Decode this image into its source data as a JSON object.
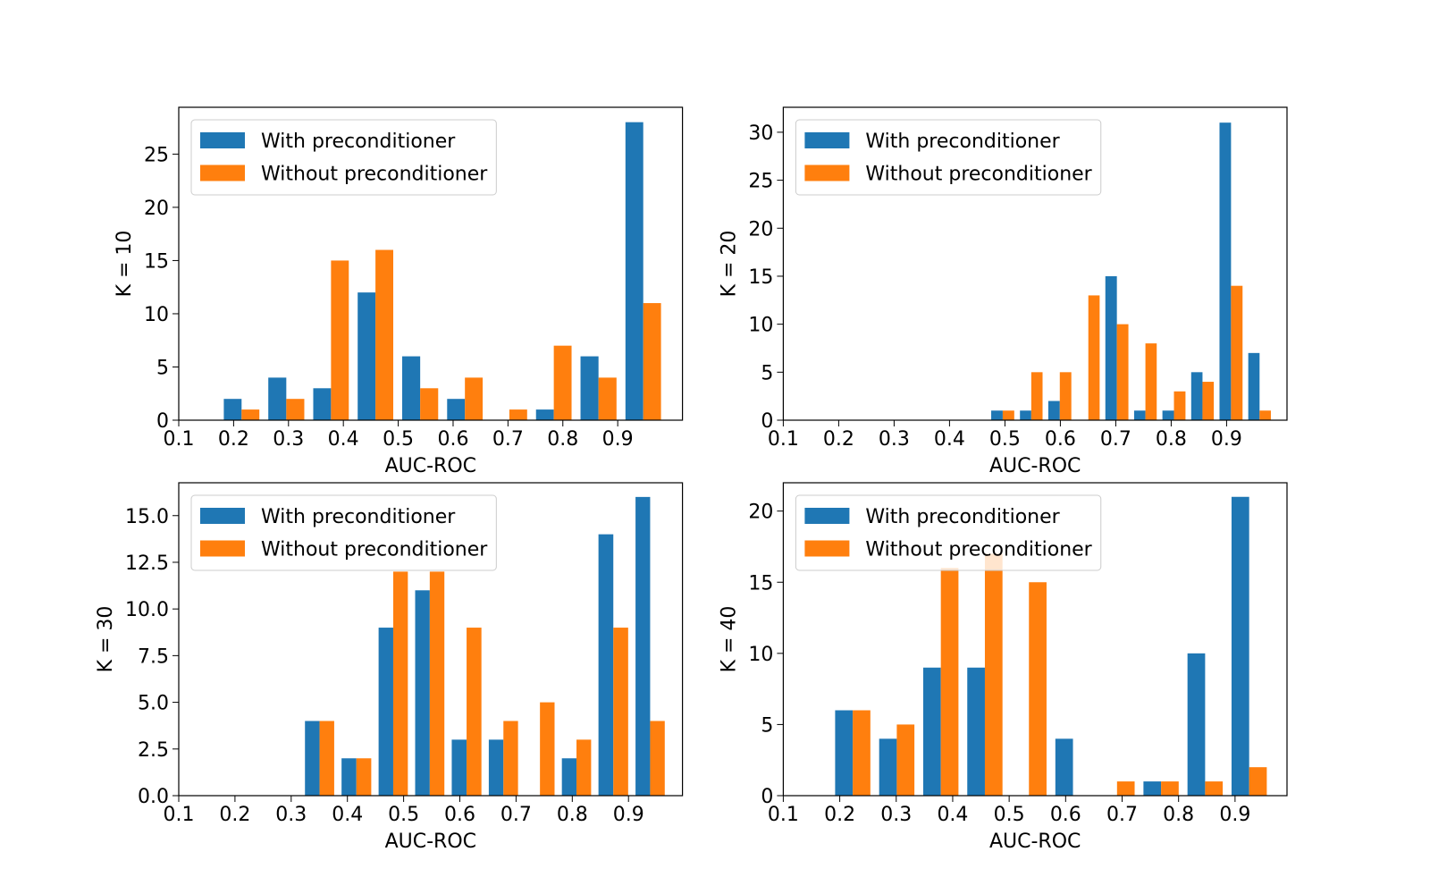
{
  "chart_data": [
    {
      "type": "histogram",
      "xlabel": "AUC-ROC",
      "ylabel": "K = 10",
      "bins": [
        0.174,
        0.255,
        0.337,
        0.418,
        0.499,
        0.581,
        0.662,
        0.743,
        0.824,
        0.906,
        0.987
      ],
      "series": [
        {
          "name": "With preconditioner",
          "color": "#1f77b4",
          "values": [
            2,
            4,
            3,
            12,
            6,
            2,
            0,
            1,
            6,
            28
          ]
        },
        {
          "name": "Without preconditioner",
          "color": "#ff7f0e",
          "values": [
            1,
            2,
            15,
            16,
            3,
            4,
            1,
            7,
            4,
            11
          ]
        }
      ],
      "xlim": [
        0.1,
        1.018
      ],
      "xticks": [
        0.1,
        0.2,
        0.3,
        0.4,
        0.5,
        0.6,
        0.7,
        0.8,
        0.9
      ],
      "ylim": [
        0,
        29.4
      ],
      "yticks": [
        0,
        5,
        10,
        15,
        20,
        25
      ],
      "legend": "upper left"
    },
    {
      "type": "histogram",
      "xlabel": "AUC-ROC",
      "ylabel": "K = 20",
      "bins": [
        0.47,
        0.522,
        0.573,
        0.625,
        0.676,
        0.728,
        0.779,
        0.831,
        0.882,
        0.934,
        0.985
      ],
      "series": [
        {
          "name": "With preconditioner",
          "color": "#1f77b4",
          "values": [
            1,
            1,
            2,
            0,
            15,
            1,
            1,
            5,
            31,
            7
          ]
        },
        {
          "name": "Without preconditioner",
          "color": "#ff7f0e",
          "values": [
            1,
            5,
            5,
            13,
            10,
            8,
            3,
            4,
            14,
            1
          ]
        }
      ],
      "xlim": [
        0.1,
        1.009
      ],
      "xticks": [
        0.1,
        0.2,
        0.3,
        0.4,
        0.5,
        0.6,
        0.7,
        0.8,
        0.9
      ],
      "ylim": [
        0,
        32.6
      ],
      "yticks": [
        0,
        5,
        10,
        15,
        20,
        25,
        30
      ],
      "legend": "upper left"
    },
    {
      "type": "histogram",
      "xlabel": "AUC-ROC",
      "ylabel": "K = 30",
      "bins": [
        0.318,
        0.383,
        0.449,
        0.514,
        0.579,
        0.645,
        0.71,
        0.775,
        0.84,
        0.906,
        0.971
      ],
      "series": [
        {
          "name": "With preconditioner",
          "color": "#1f77b4",
          "values": [
            4,
            2,
            9,
            11,
            3,
            3,
            0,
            2,
            14,
            16
          ]
        },
        {
          "name": "Without preconditioner",
          "color": "#ff7f0e",
          "values": [
            4,
            2,
            12,
            12,
            9,
            4,
            5,
            3,
            9,
            4
          ]
        }
      ],
      "xlim": [
        0.1,
        0.996
      ],
      "xticks": [
        0.1,
        0.2,
        0.3,
        0.4,
        0.5,
        0.6,
        0.7,
        0.8,
        0.9
      ],
      "ylim": [
        0,
        16.76
      ],
      "yticks": [
        {
          "value": 0,
          "label": "0.0"
        },
        2.5,
        {
          "value": 5,
          "label": "5.0"
        },
        7.5,
        {
          "value": 10,
          "label": "10.0"
        },
        12.5,
        {
          "value": 15,
          "label": "15.0"
        }
      ],
      "legend": "upper left"
    },
    {
      "type": "histogram",
      "xlabel": "AUC-ROC",
      "ylabel": "K = 40",
      "bins": [
        0.184,
        0.262,
        0.34,
        0.418,
        0.496,
        0.574,
        0.652,
        0.73,
        0.808,
        0.886,
        0.964
      ],
      "series": [
        {
          "name": "With preconditioner",
          "color": "#1f77b4",
          "values": [
            6,
            4,
            9,
            9,
            0,
            4,
            0,
            1,
            10,
            21
          ]
        },
        {
          "name": "Without preconditioner",
          "color": "#ff7f0e",
          "values": [
            6,
            5,
            16,
            17,
            15,
            0,
            1,
            1,
            1,
            2
          ]
        }
      ],
      "xlim": [
        0.1,
        0.992
      ],
      "xticks": [
        0.1,
        0.2,
        0.3,
        0.4,
        0.5,
        0.6,
        0.7,
        0.8,
        0.9
      ],
      "ylim": [
        0,
        21.99
      ],
      "yticks": [
        0,
        5,
        10,
        15,
        20
      ],
      "legend": "upper left"
    }
  ]
}
